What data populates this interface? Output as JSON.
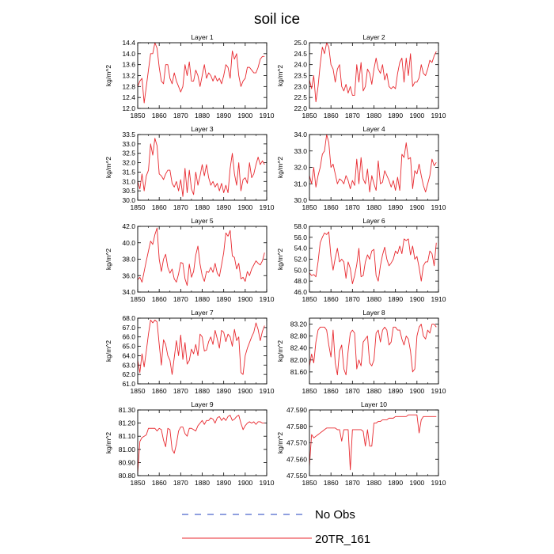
{
  "figure": {
    "title": "soil ice",
    "legend": [
      {
        "label": "No Obs",
        "style": "dashed",
        "color": "#1f3fbf"
      },
      {
        "label": "20TR_161",
        "style": "solid",
        "color": "#e8292f"
      }
    ]
  },
  "chart_data": [
    {
      "type": "line",
      "title": "Layer 1",
      "ylabel": "kg/m^2",
      "xlim": [
        1850,
        1910
      ],
      "ylim": [
        12.0,
        14.4
      ],
      "xticks": [
        1850,
        1860,
        1870,
        1880,
        1890,
        1900,
        1910
      ],
      "xtick_labels": [
        "1850",
        "1860",
        "1870",
        "1880",
        "1890",
        "1900",
        "1910"
      ],
      "yticks": [
        12.0,
        12.4,
        12.8,
        13.2,
        13.6,
        14.0,
        14.4
      ],
      "ytick_labels": [
        "12.0",
        "12.4",
        "12.8",
        "13.2",
        "13.6",
        "14.0",
        "14.4"
      ],
      "series": [
        {
          "color": "#e8292f",
          "x_start": 1850,
          "values": [
            12.8,
            13.0,
            13.1,
            12.2,
            12.8,
            13.4,
            14.0,
            14.0,
            14.4,
            14.2,
            13.5,
            13.0,
            12.9,
            13.6,
            13.6,
            13.1,
            12.9,
            13.3,
            13.0,
            12.8,
            12.6,
            12.8,
            13.6,
            13.2,
            13.7,
            13.0,
            13.0,
            13.4,
            13.2,
            12.8,
            13.2,
            13.6,
            13.1,
            13.3,
            13.2,
            13.0,
            13.2,
            13.0,
            13.1,
            12.9,
            13.2,
            13.6,
            13.5,
            13.1,
            14.1,
            13.8,
            14.0,
            13.2,
            12.8,
            13.0,
            13.1,
            13.5,
            13.5,
            13.4,
            13.3,
            13.3,
            13.5,
            13.8,
            13.9,
            13.9
          ]
        }
      ]
    },
    {
      "type": "line",
      "title": "Layer 2",
      "ylabel": "kg/m^2",
      "xlim": [
        1850,
        1910
      ],
      "ylim": [
        22.0,
        25.0
      ],
      "xticks": [
        1850,
        1860,
        1870,
        1880,
        1890,
        1900,
        1910
      ],
      "xtick_labels": [
        "1850",
        "1860",
        "1870",
        "1880",
        "1890",
        "1900",
        "1910"
      ],
      "yticks": [
        22.0,
        22.5,
        23.0,
        23.5,
        24.0,
        24.5,
        25.0
      ],
      "ytick_labels": [
        "22.0",
        "22.5",
        "23.0",
        "23.5",
        "24.0",
        "24.5",
        "25.0"
      ],
      "series": [
        {
          "color": "#e8292f",
          "x_start": 1850,
          "values": [
            23.3,
            22.9,
            23.5,
            22.3,
            23.0,
            24.0,
            24.8,
            24.5,
            25.0,
            24.8,
            24.0,
            23.8,
            23.2,
            23.8,
            24.0,
            23.0,
            22.8,
            23.1,
            22.7,
            23.0,
            22.6,
            22.6,
            24.0,
            23.2,
            24.1,
            22.8,
            23.0,
            23.8,
            23.6,
            23.1,
            23.8,
            24.3,
            23.8,
            23.6,
            24.0,
            23.3,
            23.6,
            23.0,
            22.9,
            23.0,
            22.9,
            23.6,
            24.1,
            24.3,
            23.2,
            24.3,
            23.5,
            24.5,
            23.0,
            23.2,
            23.2,
            23.4,
            24.0,
            23.6,
            23.5,
            23.8,
            24.2,
            24.1,
            24.4,
            24.6
          ]
        }
      ]
    },
    {
      "type": "line",
      "title": "Layer 3",
      "ylabel": "kg/m^2",
      "xlim": [
        1850,
        1910
      ],
      "ylim": [
        30.0,
        33.5
      ],
      "xticks": [
        1850,
        1860,
        1870,
        1880,
        1890,
        1900,
        1910
      ],
      "xtick_labels": [
        "1850",
        "1860",
        "1870",
        "1880",
        "1890",
        "1900",
        "1910"
      ],
      "yticks": [
        30.0,
        30.5,
        31.0,
        31.5,
        32.0,
        32.5,
        33.0,
        33.5
      ],
      "ytick_labels": [
        "30.0",
        "30.5",
        "31.0",
        "31.5",
        "32.0",
        "32.5",
        "33.0",
        "33.5"
      ],
      "series": [
        {
          "color": "#e8292f",
          "x_start": 1850,
          "values": [
            31.0,
            30.6,
            31.4,
            30.5,
            31.3,
            31.6,
            33.0,
            32.4,
            33.3,
            32.9,
            31.4,
            31.3,
            31.1,
            31.4,
            31.6,
            31.6,
            30.9,
            30.7,
            31.0,
            30.5,
            31.1,
            30.2,
            31.7,
            30.4,
            31.6,
            30.6,
            30.3,
            31.5,
            30.8,
            31.3,
            31.9,
            31.3,
            31.9,
            31.2,
            30.8,
            31.0,
            30.7,
            30.9,
            30.5,
            30.9,
            30.4,
            30.8,
            30.4,
            31.7,
            32.5,
            31.4,
            30.8,
            32.0,
            30.5,
            31.1,
            31.2,
            30.9,
            32.0,
            31.2,
            31.4,
            31.9,
            32.3,
            31.9,
            32.1,
            31.9
          ]
        }
      ]
    },
    {
      "type": "line",
      "title": "Layer 4",
      "ylabel": "kg/m^2",
      "xlim": [
        1850,
        1910
      ],
      "ylim": [
        30.0,
        34.0
      ],
      "xticks": [
        1850,
        1860,
        1870,
        1880,
        1890,
        1900,
        1910
      ],
      "xtick_labels": [
        "1850",
        "1860",
        "1870",
        "1880",
        "1890",
        "1900",
        "1910"
      ],
      "yticks": [
        30.0,
        31.0,
        32.0,
        33.0,
        34.0
      ],
      "ytick_labels": [
        "30.0",
        "31.0",
        "32.0",
        "33.0",
        "34.0"
      ],
      "series": [
        {
          "color": "#e8292f",
          "x_start": 1850,
          "values": [
            31.5,
            31.0,
            32.0,
            30.8,
            31.5,
            32.0,
            32.8,
            33.0,
            34.0,
            33.5,
            32.0,
            32.2,
            31.6,
            31.0,
            31.3,
            31.2,
            31.0,
            31.5,
            31.2,
            30.7,
            31.2,
            30.9,
            32.5,
            31.0,
            32.6,
            31.3,
            31.0,
            31.9,
            30.5,
            31.5,
            31.0,
            30.6,
            32.4,
            31.0,
            31.1,
            31.8,
            31.5,
            31.2,
            30.8,
            31.2,
            30.6,
            31.4,
            30.6,
            32.8,
            32.6,
            33.5,
            32.5,
            32.6,
            30.7,
            31.8,
            31.6,
            32.2,
            31.5,
            30.9,
            30.5,
            31.0,
            31.5,
            32.5,
            32.1,
            32.3
          ]
        }
      ]
    },
    {
      "type": "line",
      "title": "Layer 5",
      "ylabel": "kg/m^2",
      "xlim": [
        1850,
        1910
      ],
      "ylim": [
        34.0,
        42.0
      ],
      "xticks": [
        1850,
        1860,
        1870,
        1880,
        1890,
        1900,
        1910
      ],
      "xtick_labels": [
        "1850",
        "1860",
        "1870",
        "1880",
        "1890",
        "1900",
        "1910"
      ],
      "yticks": [
        34.0,
        36.0,
        38.0,
        40.0,
        42.0
      ],
      "ytick_labels": [
        "34.0",
        "36.0",
        "38.0",
        "40.0",
        "42.0"
      ],
      "series": [
        {
          "color": "#e8292f",
          "x_start": 1850,
          "values": [
            35.5,
            35.8,
            35.2,
            36.5,
            37.8,
            39.0,
            40.2,
            39.8,
            41.0,
            41.8,
            38.0,
            36.5,
            38.0,
            38.6,
            37.0,
            36.3,
            36.8,
            35.6,
            35.2,
            36.2,
            37.6,
            37.5,
            35.6,
            34.8,
            37.4,
            35.8,
            36.5,
            38.5,
            39.6,
            37.4,
            36.0,
            35.3,
            36.5,
            36.4,
            37.0,
            36.4,
            37.5,
            36.3,
            35.9,
            37.3,
            38.8,
            41.2,
            40.8,
            41.5,
            38.4,
            38.2,
            36.8,
            37.5,
            35.6,
            35.8,
            35.3,
            36.5,
            36.0,
            36.8,
            37.3,
            37.8,
            37.5,
            37.3,
            37.8,
            38.8
          ]
        }
      ]
    },
    {
      "type": "line",
      "title": "Layer 6",
      "ylabel": "kg/m^2",
      "xlim": [
        1850,
        1910
      ],
      "ylim": [
        46.0,
        58.0
      ],
      "xticks": [
        1850,
        1860,
        1870,
        1880,
        1890,
        1900,
        1910
      ],
      "xtick_labels": [
        "1850",
        "1860",
        "1870",
        "1880",
        "1890",
        "1900",
        "1910"
      ],
      "yticks": [
        46.0,
        48.0,
        50.0,
        52.0,
        54.0,
        56.0,
        58.0
      ],
      "ytick_labels": [
        "46.0",
        "48.0",
        "50.0",
        "52.0",
        "54.0",
        "56.0",
        "58.0"
      ],
      "series": [
        {
          "color": "#e8292f",
          "x_start": 1850,
          "values": [
            49.5,
            49.0,
            49.2,
            48.8,
            51.5,
            55.0,
            56.0,
            56.8,
            56.5,
            57.0,
            52.5,
            50.0,
            52.2,
            54.0,
            51.5,
            52.0,
            51.5,
            48.5,
            51.5,
            50.3,
            47.5,
            49.0,
            51.0,
            54.0,
            48.8,
            49.0,
            51.5,
            52.8,
            52.0,
            53.5,
            53.8,
            49.0,
            48.0,
            50.8,
            52.8,
            54.2,
            52.0,
            50.8,
            51.3,
            52.0,
            53.5,
            53.0,
            54.4,
            53.0,
            55.7,
            55.4,
            55.7,
            52.8,
            54.4,
            52.0,
            52.5,
            50.5,
            48.0,
            50.8,
            51.5,
            51.5,
            53.5,
            53.0,
            50.8,
            55.0
          ]
        }
      ]
    },
    {
      "type": "line",
      "title": "Layer 7",
      "ylabel": "kg/m^2",
      "xlim": [
        1850,
        1910
      ],
      "ylim": [
        61.0,
        68.0
      ],
      "xticks": [
        1850,
        1860,
        1870,
        1880,
        1890,
        1900,
        1910
      ],
      "xtick_labels": [
        "1850",
        "1860",
        "1870",
        "1880",
        "1890",
        "1900",
        "1910"
      ],
      "yticks": [
        61.0,
        62.0,
        63.0,
        64.0,
        65.0,
        66.0,
        67.0,
        68.0
      ],
      "ytick_labels": [
        "61.0",
        "62.0",
        "63.0",
        "64.0",
        "65.0",
        "66.0",
        "67.0",
        "68.0"
      ],
      "series": [
        {
          "color": "#e8292f",
          "x_start": 1850,
          "values": [
            63.5,
            62.2,
            64.2,
            62.8,
            64.5,
            66.3,
            67.8,
            67.5,
            67.8,
            67.6,
            65.2,
            63.0,
            65.7,
            65.2,
            64.0,
            63.5,
            62.0,
            63.8,
            65.6,
            64.0,
            66.2,
            63.6,
            65.4,
            63.1,
            63.5,
            64.7,
            64.2,
            65.2,
            64.0,
            66.3,
            66.0,
            64.5,
            64.6,
            65.5,
            66.0,
            65.2,
            66.7,
            65.8,
            64.8,
            66.7,
            66.5,
            65.5,
            66.3,
            66.0,
            65.0,
            66.8,
            65.6,
            66.0,
            62.2,
            62.0,
            64.0,
            64.8,
            65.4,
            66.0,
            66.5,
            67.5,
            66.8,
            65.6,
            66.6,
            67.2
          ]
        }
      ]
    },
    {
      "type": "line",
      "title": "Layer 8",
      "ylabel": "kg/m^2",
      "xlim": [
        1850,
        1910
      ],
      "ylim": [
        81.2,
        83.4
      ],
      "xticks": [
        1850,
        1860,
        1870,
        1880,
        1890,
        1900,
        1910
      ],
      "xtick_labels": [
        "1850",
        "1860",
        "1870",
        "1880",
        "1890",
        "1900",
        "1910"
      ],
      "yticks": [
        81.6,
        82.0,
        82.4,
        82.8,
        83.2
      ],
      "ytick_labels": [
        "81.60",
        "82.00",
        "82.40",
        "82.80",
        "83.20"
      ],
      "series": [
        {
          "color": "#e8292f",
          "x_start": 1850,
          "values": [
            81.8,
            82.2,
            81.9,
            82.6,
            83.0,
            83.1,
            83.1,
            83.1,
            83.0,
            82.5,
            82.1,
            83.0,
            81.9,
            81.5,
            82.3,
            82.5,
            81.7,
            81.5,
            82.3,
            82.9,
            83.0,
            82.9,
            81.7,
            82.0,
            81.8,
            82.6,
            82.7,
            82.8,
            81.9,
            81.8,
            82.0,
            82.9,
            83.0,
            82.6,
            83.0,
            83.1,
            83.0,
            82.5,
            82.6,
            83.1,
            83.1,
            83.0,
            83.0,
            82.7,
            82.5,
            82.8,
            82.7,
            82.3,
            81.6,
            81.7,
            82.8,
            83.1,
            83.2,
            82.8,
            82.7,
            83.0,
            82.9,
            83.2,
            83.2,
            83.1
          ]
        }
      ]
    },
    {
      "type": "line",
      "title": "Layer 9",
      "ylabel": "kg/m^2",
      "xlim": [
        1850,
        1910
      ],
      "ylim": [
        80.8,
        81.3
      ],
      "xticks": [
        1850,
        1860,
        1870,
        1880,
        1890,
        1900,
        1910
      ],
      "xtick_labels": [
        "1850",
        "1860",
        "1870",
        "1880",
        "1890",
        "1900",
        "1910"
      ],
      "yticks": [
        80.8,
        80.9,
        81.0,
        81.1,
        81.2,
        81.3
      ],
      "ytick_labels": [
        "80.80",
        "80.90",
        "81.00",
        "81.10",
        "81.20",
        "81.30"
      ],
      "series": [
        {
          "color": "#e8292f",
          "x_start": 1850,
          "values": [
            80.82,
            81.06,
            81.09,
            81.1,
            81.11,
            81.16,
            81.16,
            81.16,
            81.16,
            81.14,
            81.16,
            81.15,
            81.07,
            81.02,
            81.16,
            81.15,
            81.0,
            80.97,
            81.04,
            81.14,
            81.17,
            81.17,
            81.12,
            81.1,
            81.16,
            81.16,
            81.15,
            81.14,
            81.18,
            81.2,
            81.22,
            81.19,
            81.22,
            81.22,
            81.24,
            81.23,
            81.2,
            81.24,
            81.25,
            81.22,
            81.24,
            81.22,
            81.25,
            81.26,
            81.22,
            81.23,
            81.25,
            81.26,
            81.2,
            81.15,
            81.18,
            81.2,
            81.21,
            81.2,
            81.21,
            81.19,
            81.21,
            81.21,
            81.2,
            81.2
          ]
        }
      ]
    },
    {
      "type": "line",
      "title": "Layer 10",
      "ylabel": "kg/m^2",
      "xlim": [
        1850,
        1910
      ],
      "ylim": [
        47.55,
        47.59
      ],
      "xticks": [
        1850,
        1860,
        1870,
        1880,
        1890,
        1900,
        1910
      ],
      "xtick_labels": [
        "1850",
        "1860",
        "1870",
        "1880",
        "1890",
        "1900",
        "1910"
      ],
      "yticks": [
        47.55,
        47.56,
        47.57,
        47.58,
        47.59
      ],
      "ytick_labels": [
        "47.550",
        "47.560",
        "47.570",
        "47.580",
        "47.590"
      ],
      "series": [
        {
          "color": "#e8292f",
          "x_start": 1850,
          "values": [
            47.556,
            47.575,
            47.573,
            47.574,
            47.575,
            47.576,
            47.577,
            47.578,
            47.579,
            47.579,
            47.579,
            47.579,
            47.579,
            47.578,
            47.578,
            47.571,
            47.578,
            47.578,
            47.578,
            47.5535,
            47.578,
            47.578,
            47.578,
            47.578,
            47.578,
            47.577,
            47.568,
            47.578,
            47.568,
            47.568,
            47.582,
            47.582,
            47.583,
            47.583,
            47.584,
            47.584,
            47.584,
            47.585,
            47.585,
            47.585,
            47.586,
            47.586,
            47.586,
            47.586,
            47.586,
            47.586,
            47.587,
            47.587,
            47.587,
            47.587,
            47.587,
            47.576,
            47.584,
            47.586,
            47.586,
            47.586,
            47.586,
            47.586,
            47.586,
            47.586
          ]
        }
      ]
    }
  ]
}
